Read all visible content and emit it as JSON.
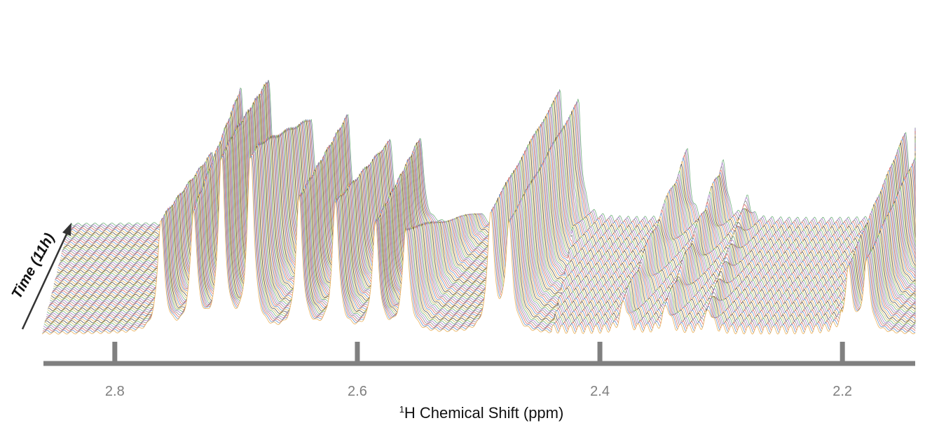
{
  "chart_data": {
    "type": "line",
    "style": "stacked-waterfall (pseudo-3D stacked 1D spectra)",
    "xlabel_prefix_superscript": "1",
    "xlabel_main": "H Chemical Shift (ppm)",
    "time_axis_label": "Time (11h)",
    "x_ticks": [
      2.8,
      2.6,
      2.4,
      2.2
    ],
    "x_tick_labels": [
      "2.8",
      "2.6",
      "2.4",
      "2.2"
    ],
    "xlim": [
      2.86,
      2.14
    ],
    "x_direction": "decreasing-left-to-right",
    "grid": false,
    "legend": "none",
    "trace_count": 70,
    "trace_colors": [
      "#e8a33d",
      "#4f7fbf",
      "#d9534f",
      "#7a7a7a",
      "#9b6bbf",
      "#5aa469",
      "#c7b24a",
      "#3a3a3a"
    ],
    "peaks_at_start": [
      {
        "shift": 2.762,
        "height": 0.52
      },
      {
        "shift": 2.735,
        "height": 0.55
      },
      {
        "shift": 2.712,
        "height": 0.82
      },
      {
        "shift": 2.688,
        "height": 0.85
      },
      {
        "shift": 2.648,
        "height": 0.62
      },
      {
        "shift": 2.618,
        "height": 0.6
      },
      {
        "shift": 2.585,
        "height": 0.5
      },
      {
        "shift": 2.56,
        "height": 0.48
      },
      {
        "shift": 2.49,
        "height": 0.55
      },
      {
        "shift": 2.475,
        "height": 0.5
      },
      {
        "shift": 2.38,
        "height": 0.14
      },
      {
        "shift": 2.345,
        "height": 0.12
      },
      {
        "shift": 2.31,
        "height": 0.1
      },
      {
        "shift": 2.195,
        "height": 0.3
      },
      {
        "shift": 2.18,
        "height": 0.33
      }
    ],
    "peaks_at_end": [
      {
        "shift": 2.742,
        "height": 0.32
      },
      {
        "shift": 2.718,
        "height": 0.62
      },
      {
        "shift": 2.695,
        "height": 0.66
      },
      {
        "shift": 2.66,
        "height": 0.48
      },
      {
        "shift": 2.63,
        "height": 0.5
      },
      {
        "shift": 2.595,
        "height": 0.38
      },
      {
        "shift": 2.57,
        "height": 0.4
      },
      {
        "shift": 2.52,
        "height": 0.05
      },
      {
        "shift": 2.455,
        "height": 0.6
      },
      {
        "shift": 2.44,
        "height": 0.55
      },
      {
        "shift": 2.35,
        "height": 0.32
      },
      {
        "shift": 2.32,
        "height": 0.28
      },
      {
        "shift": 2.3,
        "height": 0.1
      },
      {
        "shift": 2.17,
        "height": 0.42
      },
      {
        "shift": 2.15,
        "height": 0.45
      }
    ]
  }
}
